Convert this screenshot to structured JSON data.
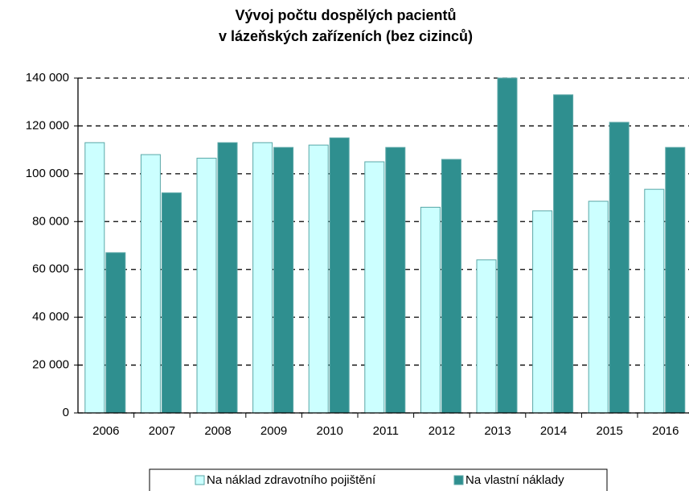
{
  "chart_data": {
    "type": "bar",
    "title": [
      "Vývoj počtu dospělých pacientů",
      "v lázeňských zařízeních (bez cizinců)"
    ],
    "categories": [
      "2006",
      "2007",
      "2008",
      "2009",
      "2010",
      "2011",
      "2012",
      "2013",
      "2014",
      "2015",
      "2016"
    ],
    "series": [
      {
        "name": "Na náklad zdravotního pojištění",
        "color": "#ccffff",
        "values": [
          113000,
          108000,
          106500,
          113000,
          112000,
          105000,
          86000,
          64000,
          84500,
          88500,
          93500
        ]
      },
      {
        "name": "Na vlastní náklady",
        "color": "#2f8f8f",
        "values": [
          67000,
          92000,
          113000,
          111000,
          115000,
          111000,
          106000,
          140000,
          133000,
          121500,
          111000
        ]
      }
    ],
    "ylim": [
      0,
      140000
    ],
    "yticks": [
      {
        "value": 0,
        "label": "0"
      },
      {
        "value": 20000,
        "label": "20 000"
      },
      {
        "value": 40000,
        "label": "40 000"
      },
      {
        "value": 60000,
        "label": "60 000"
      },
      {
        "value": 80000,
        "label": "80 000"
      },
      {
        "value": 100000,
        "label": "100 000"
      },
      {
        "value": 120000,
        "label": "120 000"
      },
      {
        "value": 140000,
        "label": "140 000"
      }
    ],
    "grid": true,
    "legend": "bottom"
  }
}
